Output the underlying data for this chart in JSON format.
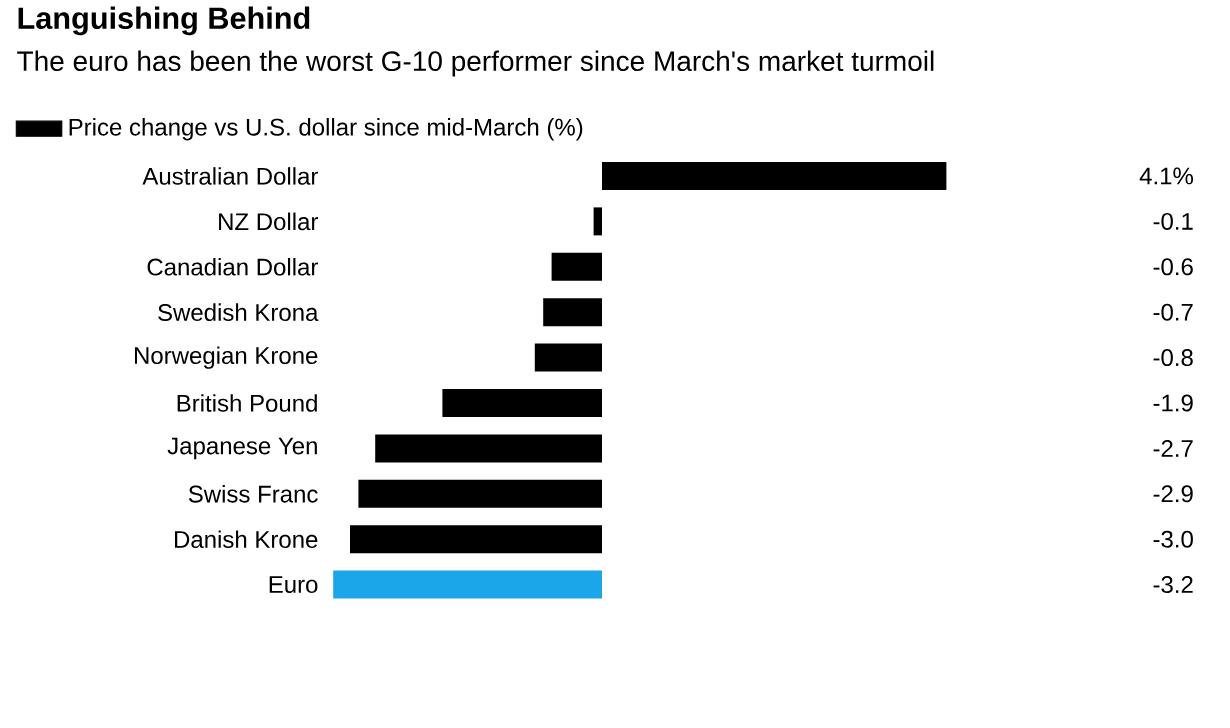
{
  "chart_data": {
    "type": "bar",
    "orientation": "horizontal",
    "title": "Languishing Behind",
    "subtitle": "The euro has been the worst G-10 performer since March's market turmoil",
    "categories": [
      "Australian Dollar",
      "NZ Dollar",
      "Canadian Dollar",
      "Swedish Krona",
      "Norwegian Krone",
      "British Pound",
      "Japanese Yen",
      "Swiss Franc",
      "Danish Krone",
      "Euro"
    ],
    "series": [
      {
        "name": "Price change vs U.S. dollar since mid-March (%)",
        "color": "#000000",
        "colors": [
          "#000000",
          "#000000",
          "#000000",
          "#000000",
          "#000000",
          "#000000",
          "#000000",
          "#000000",
          "#000000",
          "#1aa6e8"
        ],
        "values": [
          4.1,
          -0.1,
          -0.6,
          -0.7,
          -0.8,
          -1.9,
          -2.7,
          -2.9,
          -3.0,
          -3.2
        ],
        "value_labels": [
          "4.1%",
          "-0.1",
          "-0.6",
          "-0.7",
          "-0.8",
          "-1.9",
          "-2.7",
          "-2.9",
          "-3.0",
          "-3.2"
        ]
      }
    ],
    "legend": "top left"
  }
}
